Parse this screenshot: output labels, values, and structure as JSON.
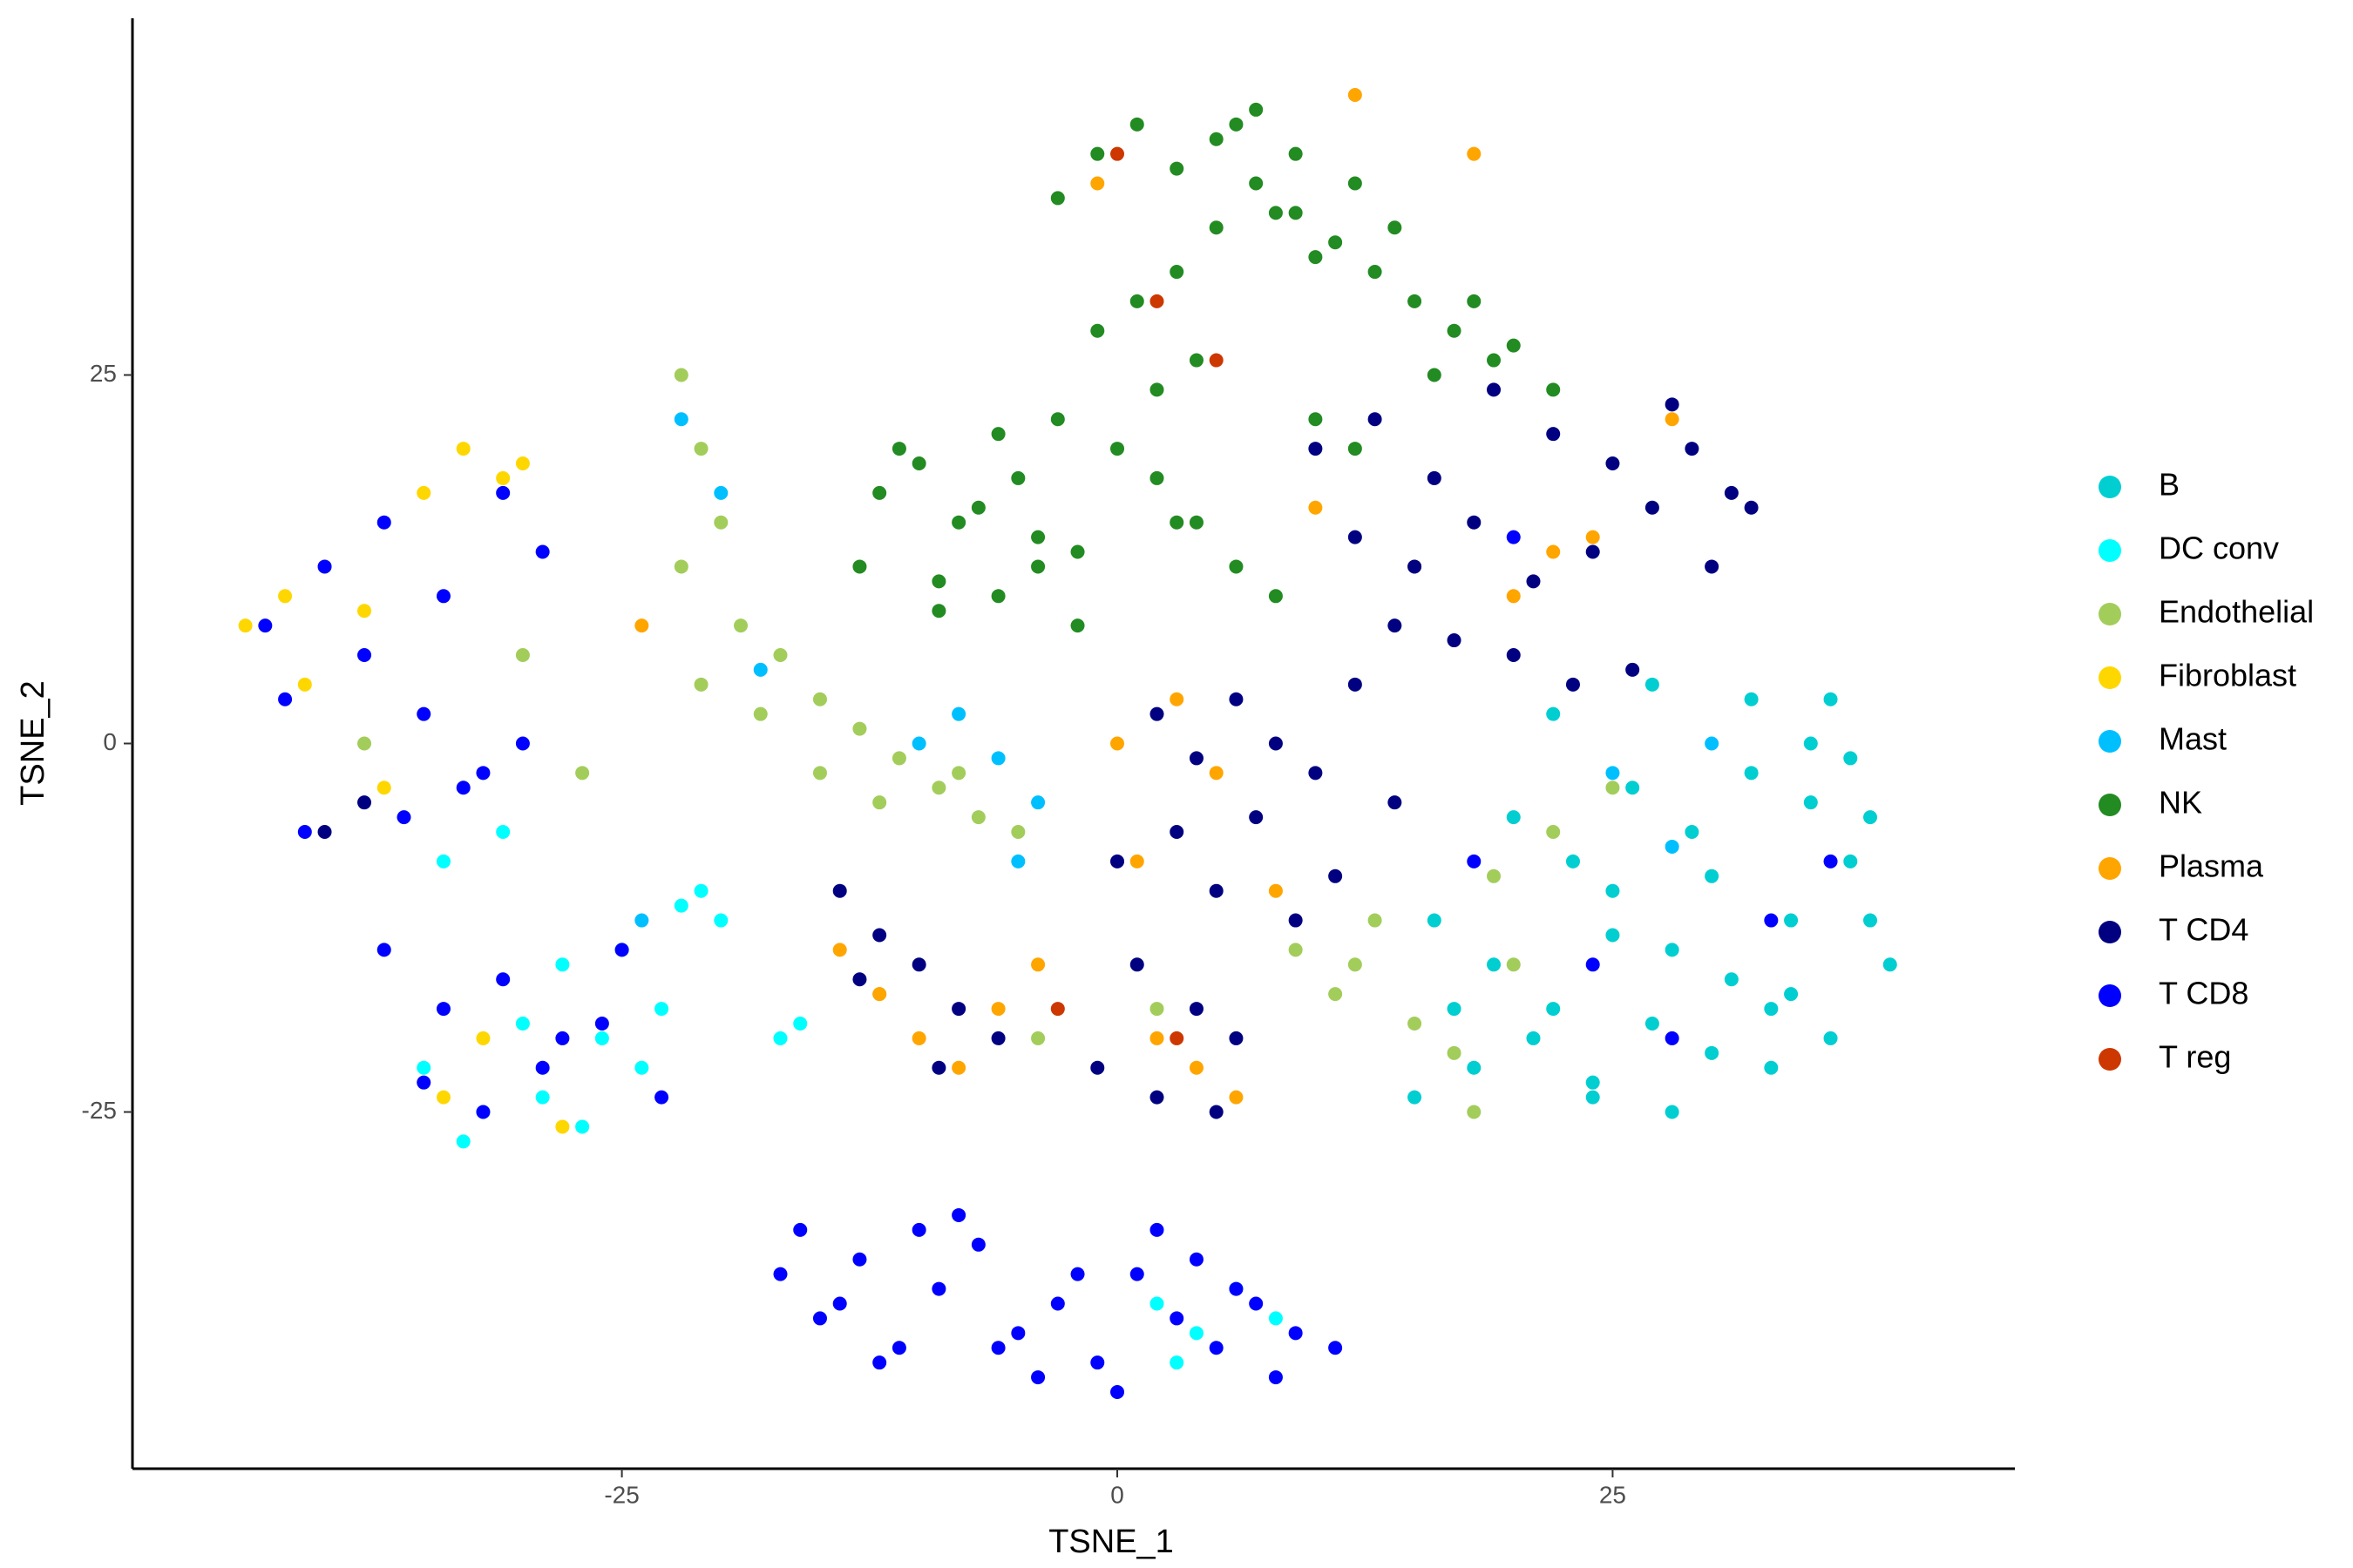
{
  "chart_data": {
    "type": "scatter",
    "x_label": "TSNE_1",
    "y_label": "TSNE_2",
    "xlim": [
      -49.7,
      45.3
    ],
    "ylim": [
      -49.2,
      49.2
    ],
    "xticks": [
      -25,
      0,
      25
    ],
    "yticks": [
      -25,
      0,
      25
    ],
    "grid": false,
    "legend_position": "right",
    "series": [
      {
        "name": "B",
        "color": "#00CED1",
        "x": [
          16,
          19,
          22,
          25,
          28,
          31,
          34,
          37,
          39,
          18,
          21,
          24,
          27,
          30,
          33,
          36,
          38,
          20,
          23,
          26,
          29,
          32,
          35,
          17,
          22,
          27,
          32,
          37,
          15,
          25,
          30,
          35,
          24,
          28,
          33,
          38,
          36,
          34
        ],
        "y": [
          -12,
          -15,
          -18,
          -10,
          -14,
          -16,
          -12,
          -8,
          -15,
          -22,
          -20,
          -24,
          -19,
          -21,
          -18,
          -20,
          -5,
          -5,
          -8,
          -3,
          -6,
          -2,
          0,
          -18,
          2,
          4,
          3,
          -1,
          -24,
          -13,
          -9,
          -4,
          -23,
          -25,
          -22,
          -12,
          3,
          -17
        ]
      },
      {
        "name": "DC conv",
        "color": "#00FFFF",
        "x": [
          -35,
          -32,
          -29,
          -26,
          -23,
          -20,
          -33,
          -30,
          -27,
          -24,
          -21,
          -28,
          -25,
          -22,
          -34,
          -31,
          2,
          4,
          6,
          8,
          3,
          -16,
          -17
        ],
        "y": [
          -22,
          -25,
          -24,
          -20,
          -18,
          -12,
          -27,
          -19,
          -26,
          -22,
          -10,
          -15,
          -14,
          -11,
          -8,
          -6,
          -38,
          -40,
          -37,
          -39,
          -42,
          -19,
          -20
        ]
      },
      {
        "name": "Endothelial",
        "color": "#A2CD5A",
        "x": [
          -22,
          -21,
          -20,
          -22,
          -19,
          -17,
          -21,
          -15,
          -13,
          -11,
          -9,
          -7,
          -5,
          -15,
          -12,
          -18,
          -8,
          9,
          11,
          13,
          15,
          17,
          12,
          19,
          22,
          25,
          18,
          20,
          -38,
          -30,
          -27,
          -12,
          -4,
          2
        ],
        "y": [
          25,
          20,
          15,
          12,
          8,
          6,
          4,
          3,
          1,
          -1,
          -3,
          -5,
          -6,
          -2,
          -4,
          2,
          -2,
          -14,
          -17,
          -12,
          -19,
          -21,
          -15,
          -9,
          -6,
          -3,
          -25,
          -15,
          0,
          6,
          -2,
          -17,
          -20,
          -18
        ]
      },
      {
        "name": "Fibroblast",
        "color": "#FFD700",
        "x": [
          -44,
          -42,
          -40,
          -38,
          -33,
          -31,
          -30,
          -35,
          -41,
          -37,
          -32,
          -28,
          -34
        ],
        "y": [
          8,
          10,
          12,
          9,
          20,
          18,
          19,
          17,
          4,
          -3,
          -20,
          -26,
          -24
        ]
      },
      {
        "name": "Mast",
        "color": "#00BFFF",
        "x": [
          -8,
          -6,
          -4,
          -10,
          -22,
          -20,
          -5,
          25,
          28,
          30,
          -24,
          -18
        ],
        "y": [
          2,
          -1,
          -4,
          0,
          22,
          17,
          -8,
          -2,
          -7,
          0,
          -12,
          5
        ]
      },
      {
        "name": "NK",
        "color": "#228B22",
        "x": [
          -12,
          -10,
          -8,
          -6,
          -4,
          -2,
          -13,
          -9,
          -5,
          -11,
          -7,
          -3,
          0,
          2,
          4,
          -1,
          1,
          3,
          5,
          7,
          9,
          6,
          8,
          10,
          12,
          14,
          -3,
          -1,
          1,
          3,
          5,
          7,
          9,
          11,
          13,
          15,
          17,
          19,
          2,
          4,
          6,
          8,
          10,
          12,
          16,
          18,
          -9,
          -6,
          -4,
          -2,
          3,
          20,
          22
        ],
        "y": [
          17,
          19,
          15,
          21,
          14,
          13,
          12,
          11,
          18,
          20,
          16,
          22,
          20,
          24,
          26,
          28,
          30,
          32,
          35,
          38,
          40,
          42,
          36,
          33,
          38,
          35,
          37,
          40,
          42,
          39,
          41,
          43,
          36,
          34,
          32,
          30,
          28,
          26,
          18,
          15,
          12,
          10,
          22,
          20,
          25,
          30,
          9,
          10,
          12,
          8,
          15,
          27,
          24
        ]
      },
      {
        "name": "Plasma",
        "color": "#FFA500",
        "x": [
          -14,
          -12,
          -10,
          -8,
          -6,
          -4,
          2,
          4,
          6,
          0,
          1,
          3,
          10,
          15,
          20,
          24,
          28,
          18,
          -1,
          5,
          8,
          -24,
          12,
          22
        ],
        "y": [
          -14,
          -17,
          -20,
          -22,
          -18,
          -15,
          -20,
          -22,
          -24,
          0,
          -8,
          3,
          16,
          12,
          10,
          14,
          22,
          40,
          38,
          -2,
          -10,
          8,
          44,
          13
        ]
      },
      {
        "name": "T CD4",
        "color": "#000080",
        "x": [
          10,
          13,
          16,
          19,
          22,
          25,
          28,
          31,
          12,
          15,
          18,
          21,
          24,
          27,
          30,
          14,
          17,
          20,
          23,
          26,
          2,
          4,
          6,
          8,
          10,
          12,
          14,
          0,
          3,
          5,
          7,
          9,
          11,
          1,
          4,
          6,
          -1,
          2,
          5,
          -14,
          -12,
          -10,
          -8,
          -6,
          -13,
          -9,
          -40,
          -38,
          29,
          32
        ],
        "y": [
          20,
          22,
          18,
          24,
          21,
          19,
          23,
          17,
          14,
          12,
          15,
          11,
          13,
          16,
          12,
          8,
          7,
          6,
          4,
          5,
          2,
          -1,
          3,
          0,
          -2,
          4,
          -4,
          -8,
          -6,
          -10,
          -5,
          -12,
          -9,
          -15,
          -18,
          -20,
          -22,
          -24,
          -25,
          -10,
          -13,
          -15,
          -18,
          -20,
          -16,
          -22,
          -6,
          -4,
          20,
          16
        ]
      },
      {
        "name": "T CD8",
        "color": "#0000FF",
        "x": [
          -17,
          -15,
          -13,
          -11,
          -9,
          -7,
          -5,
          -3,
          -1,
          1,
          3,
          5,
          7,
          9,
          11,
          -16,
          -12,
          -8,
          -4,
          0,
          4,
          8,
          -14,
          -10,
          -6,
          -2,
          2,
          6,
          -43,
          -40,
          -37,
          -34,
          -31,
          -29,
          -42,
          -38,
          -35,
          -32,
          -30,
          -41,
          -36,
          -33,
          -37,
          -34,
          -31,
          -28,
          -25,
          -35,
          -32,
          -29,
          -26,
          -23,
          18,
          24,
          28,
          20,
          33,
          36
        ],
        "y": [
          -36,
          -39,
          -35,
          -41,
          -37,
          -34,
          -40,
          -38,
          -42,
          -36,
          -39,
          -41,
          -38,
          -40,
          -41,
          -33,
          -42,
          -32,
          -43,
          -44,
          -35,
          -43,
          -38,
          -33,
          -41,
          -36,
          -33,
          -37,
          8,
          12,
          15,
          10,
          17,
          13,
          3,
          6,
          2,
          -2,
          0,
          -6,
          -5,
          -3,
          -14,
          -18,
          -16,
          -20,
          -14,
          -23,
          -25,
          -22,
          -19,
          -24,
          -8,
          -15,
          -20,
          14,
          -12,
          -8
        ]
      },
      {
        "name": "T reg",
        "color": "#CD3700",
        "x": [
          0,
          2,
          5,
          -3,
          3
        ],
        "y": [
          40,
          30,
          26,
          -18,
          -20
        ]
      }
    ]
  }
}
